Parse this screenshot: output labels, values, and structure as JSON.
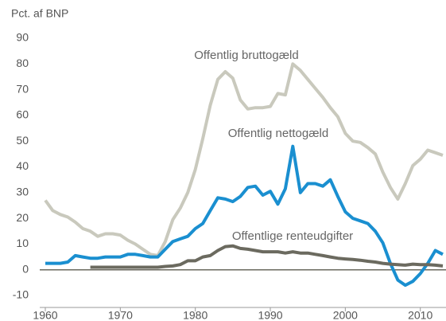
{
  "chart_data": {
    "type": "line",
    "title": "Pct. af BNP",
    "x": [
      1960,
      1961,
      1962,
      1963,
      1964,
      1965,
      1966,
      1967,
      1968,
      1969,
      1970,
      1971,
      1972,
      1973,
      1974,
      1975,
      1976,
      1977,
      1978,
      1979,
      1980,
      1981,
      1982,
      1983,
      1984,
      1985,
      1986,
      1987,
      1988,
      1989,
      1990,
      1991,
      1992,
      1993,
      1994,
      1995,
      1996,
      1997,
      1998,
      1999,
      2000,
      2001,
      2002,
      2003,
      2004,
      2005,
      2006,
      2007,
      2008,
      2009,
      2010,
      2011,
      2012,
      2013
    ],
    "series": [
      {
        "name": "Offentlig bruttogæld",
        "color": "#c9c9bd",
        "values": [
          27,
          23,
          21.5,
          20.5,
          18.5,
          16,
          15,
          13,
          14,
          14,
          13.5,
          11.5,
          10,
          8,
          6,
          5.5,
          11,
          19.5,
          24,
          30,
          39,
          51,
          64,
          74,
          77,
          74.5,
          66,
          62.5,
          63,
          63,
          63.5,
          68.5,
          68,
          80,
          77.5,
          74,
          70.5,
          67,
          63,
          59.5,
          53,
          50,
          49.5,
          47.5,
          45,
          38,
          32,
          27.5,
          33.5,
          40.5,
          43,
          46.5,
          45.5,
          44.5
        ]
      },
      {
        "name": "Offentlig nettogæld",
        "color": "#1a8fd0",
        "values": [
          2.5,
          2.5,
          2.5,
          3,
          5.5,
          5,
          4.5,
          4.5,
          5,
          5,
          5,
          6,
          6,
          5.5,
          5,
          5,
          8,
          11,
          12,
          13,
          16,
          18,
          23,
          28,
          27.5,
          26.5,
          28.5,
          32,
          32.5,
          29,
          30.5,
          25.5,
          31.5,
          48,
          30,
          33.5,
          33.5,
          32.5,
          35,
          28.5,
          22.5,
          20,
          19,
          18,
          15,
          10.5,
          2.5,
          -4,
          -6,
          -4.5,
          -1.5,
          2.5,
          7.5,
          6
        ]
      },
      {
        "name": "Offentlige renteudgifter",
        "color": "#6b6a5f",
        "values": [
          null,
          null,
          null,
          null,
          null,
          null,
          1,
          1,
          1,
          1,
          1,
          1,
          1,
          1,
          1,
          1,
          1.3,
          1.5,
          2,
          3.5,
          3.5,
          5,
          5.5,
          7.5,
          9,
          9.3,
          8.3,
          8,
          7.5,
          7,
          7,
          7,
          6.5,
          7,
          6.5,
          6.5,
          6,
          5.5,
          5,
          4.5,
          4.2,
          4,
          3.7,
          3.3,
          3,
          2.5,
          2.2,
          2,
          1.8,
          2.2,
          2,
          2,
          1.8,
          1.5
        ]
      }
    ],
    "xlim": [
      1960,
      2013
    ],
    "xticks": [
      1960,
      1970,
      1980,
      1990,
      2000,
      2010
    ],
    "ylim": [
      -10,
      90
    ],
    "yticks": [
      -10,
      0,
      10,
      20,
      30,
      40,
      50,
      60,
      70,
      80,
      90
    ]
  }
}
